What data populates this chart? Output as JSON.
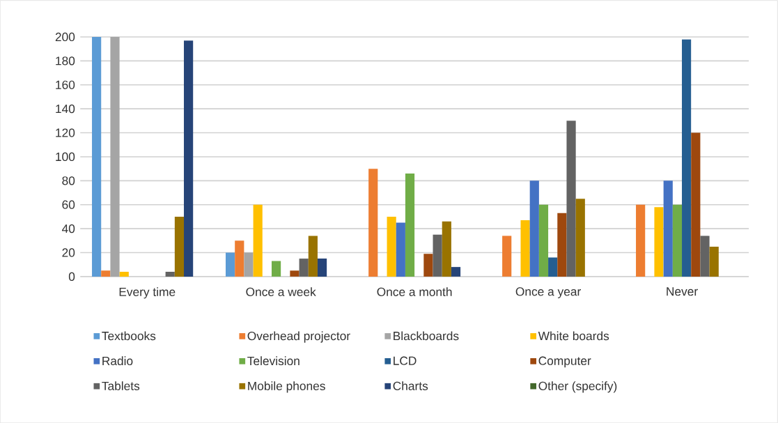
{
  "chart_data": {
    "type": "bar",
    "categories": [
      "Every time",
      "Once a week",
      "Once a month",
      "Once a year",
      "Never"
    ],
    "series": [
      {
        "name": "Textbooks",
        "color": "#5b9bd5",
        "values": [
          200,
          20,
          0,
          0,
          0
        ]
      },
      {
        "name": "Overhead projector",
        "color": "#ed7d31",
        "values": [
          5,
          30,
          90,
          34,
          60
        ]
      },
      {
        "name": "Blackboards",
        "color": "#a5a5a5",
        "values": [
          200,
          20,
          0,
          0,
          0
        ]
      },
      {
        "name": "White boards",
        "color": "#ffc000",
        "values": [
          4,
          60,
          50,
          47,
          58
        ]
      },
      {
        "name": "Radio",
        "color": "#4472c4",
        "values": [
          0,
          0,
          45,
          80,
          80
        ]
      },
      {
        "name": "Television",
        "color": "#70ad47",
        "values": [
          0,
          13,
          86,
          60,
          60
        ]
      },
      {
        "name": "LCD",
        "color": "#255e91",
        "values": [
          0,
          0,
          0,
          16,
          198
        ]
      },
      {
        "name": "Computer",
        "color": "#9e480e",
        "values": [
          0,
          5,
          19,
          53,
          120
        ]
      },
      {
        "name": "Tablets",
        "color": "#636363",
        "values": [
          4,
          15,
          35,
          130,
          34
        ]
      },
      {
        "name": "Mobile phones",
        "color": "#997300",
        "values": [
          50,
          34,
          46,
          65,
          25
        ]
      },
      {
        "name": "Charts",
        "color": "#264478",
        "values": [
          197,
          15,
          8,
          0,
          0
        ]
      },
      {
        "name": "Other (specify)",
        "color": "#43682b",
        "values": [
          0,
          0,
          0,
          0,
          0
        ]
      }
    ],
    "ylim": [
      0,
      200
    ],
    "yticks": [
      0,
      20,
      40,
      60,
      80,
      100,
      120,
      140,
      160,
      180,
      200
    ],
    "grid": "y",
    "legend": "bottom"
  }
}
